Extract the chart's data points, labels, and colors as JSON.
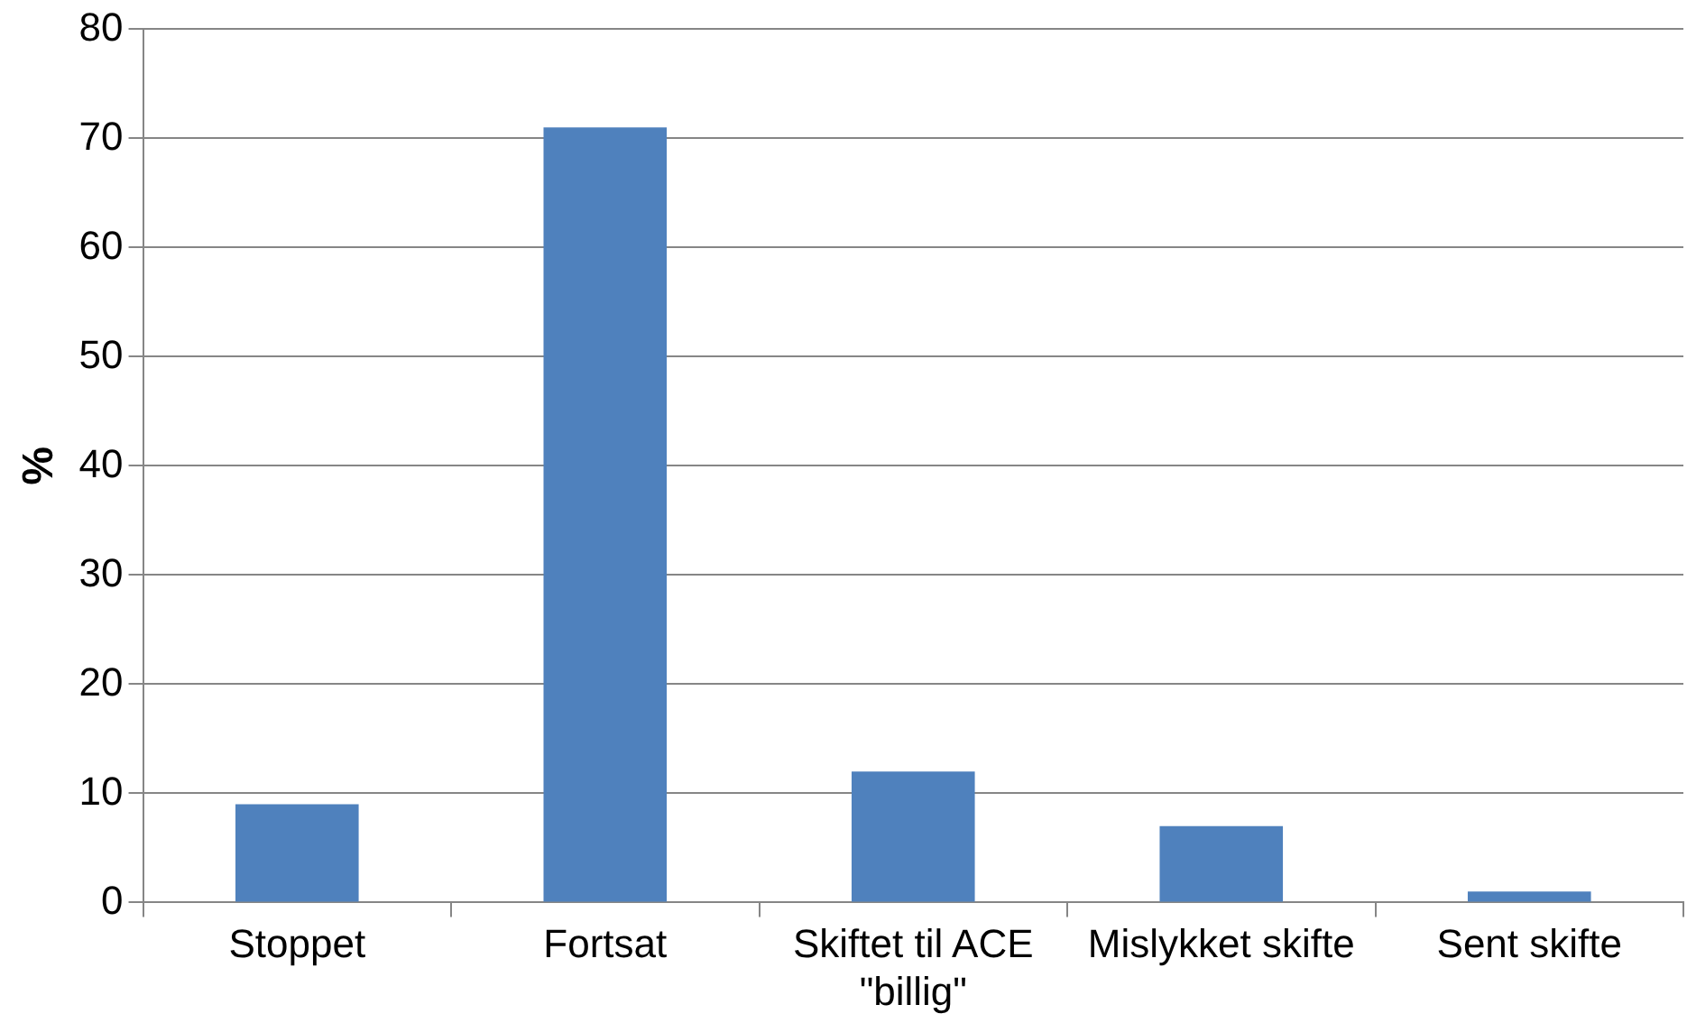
{
  "chart_data": {
    "type": "bar",
    "ylabel": "%",
    "categories": [
      "Stoppet",
      "Fortsat",
      "Skiftet til ACE \"billig\"",
      "Mislykket skifte",
      "Sent skifte"
    ],
    "values": [
      9,
      71,
      12,
      7,
      1
    ],
    "color": "#4f81bd",
    "ylim": [
      0,
      80
    ],
    "yticks": [
      0,
      10,
      20,
      30,
      40,
      50,
      60,
      70,
      80
    ],
    "grid": "y",
    "legend": false
  }
}
